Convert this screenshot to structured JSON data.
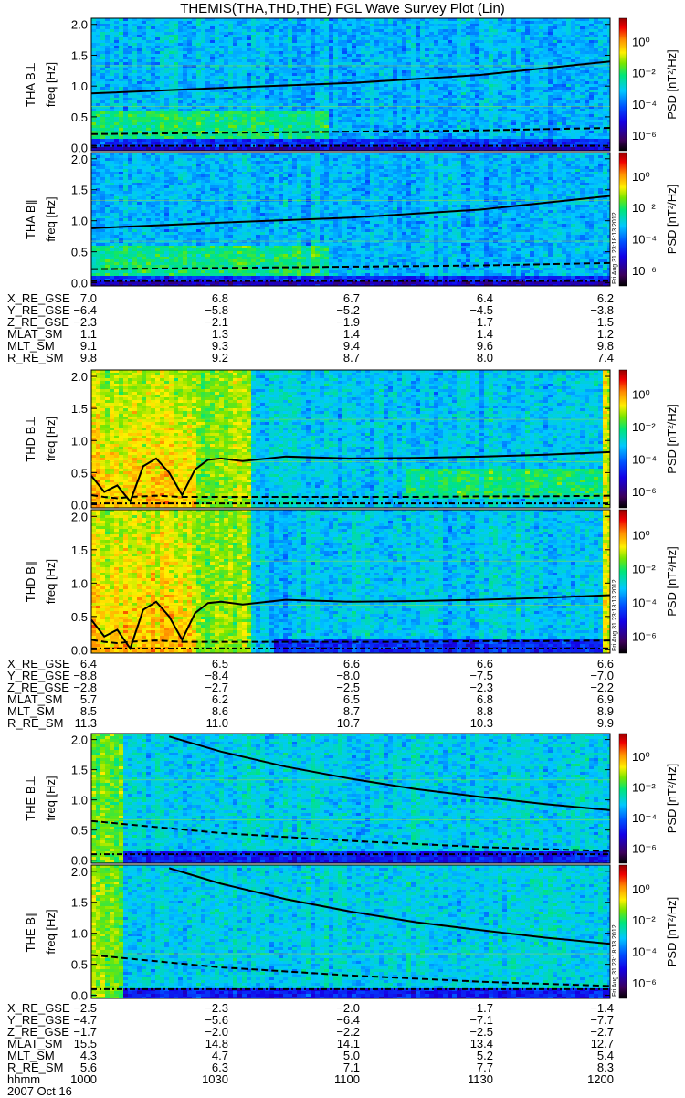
{
  "title": "THEMIS(THA,THD,THE) FGL Wave Survey Plot (Lin)",
  "colors": {
    "curve": "#000000",
    "background": "#ffffff"
  },
  "chart_data": {
    "type": "heatmap",
    "title": "THEMIS(THA,THD,THE) FGL Wave Survey Plot (Lin)",
    "xlabel": "hhmm",
    "date": "2007 Oct 16",
    "x_ticks": [
      "1000",
      "1030",
      "1100",
      "1130",
      "1200"
    ],
    "xlim_minutes_after_1000": [
      0,
      120
    ],
    "ylabel": "freq [Hz]",
    "ylim": [
      0,
      2.0
    ],
    "y_ticks": [
      "0.0",
      "0.5",
      "1.0",
      "1.5",
      "2.0"
    ],
    "colorbar": {
      "label": "PSD [nT²/Hz]",
      "scale": "log",
      "ticks": [
        "10⁰",
        "10⁻²",
        "10⁻⁴",
        "10⁻⁶"
      ],
      "range_log10": [
        -7,
        1.5
      ]
    },
    "timestamp": "Fri Aug 31 23:18:13 2012",
    "panels": [
      {
        "probe": "THA",
        "label": "THA B⊥",
        "curves": {
          "t": [
            0,
            30,
            60,
            90,
            120
          ],
          "solid": [
            0.88,
            0.97,
            1.05,
            1.18,
            1.4
          ],
          "dashed": [
            0.22,
            0.24,
            0.26,
            0.28,
            0.32
          ],
          "dashdot": [
            0.03,
            0.03,
            0.03,
            0.03,
            0.03
          ]
        }
      },
      {
        "probe": "THA",
        "label": "THA B∥",
        "curves": {
          "t": [
            0,
            30,
            60,
            90,
            120
          ],
          "solid": [
            0.88,
            0.97,
            1.05,
            1.18,
            1.4
          ],
          "dashed": [
            0.22,
            0.24,
            0.26,
            0.28,
            0.32
          ],
          "dashdot": [
            0.03,
            0.03,
            0.03,
            0.03,
            0.03
          ]
        }
      },
      {
        "probe": "THD",
        "label": "THD B⊥",
        "curves": {
          "t": [
            0,
            3,
            6,
            9,
            12,
            15,
            18,
            21,
            24,
            27,
            30,
            35,
            45,
            60,
            75,
            90,
            105,
            120
          ],
          "solid": [
            0.45,
            0.2,
            0.3,
            0.05,
            0.6,
            0.72,
            0.5,
            0.15,
            0.55,
            0.7,
            0.72,
            0.68,
            0.75,
            0.72,
            0.73,
            0.75,
            0.78,
            0.82
          ],
          "dashed": [
            0.15,
            0.12,
            0.1,
            0.12,
            0.13,
            0.14,
            0.13,
            0.12,
            0.12,
            0.12,
            0.12,
            0.12,
            0.12,
            0.12,
            0.12,
            0.13,
            0.13,
            0.14
          ],
          "dashdot": [
            0.02,
            0.02,
            0.02,
            0.02,
            0.02,
            0.02,
            0.02,
            0.02,
            0.02,
            0.02,
            0.02,
            0.02,
            0.02,
            0.02,
            0.02,
            0.02,
            0.02,
            0.02
          ]
        }
      },
      {
        "probe": "THD",
        "label": "THD B∥",
        "curves": {
          "t": [
            0,
            3,
            6,
            9,
            12,
            15,
            18,
            21,
            24,
            27,
            30,
            35,
            45,
            60,
            75,
            90,
            105,
            120
          ],
          "solid": [
            0.45,
            0.2,
            0.3,
            0.02,
            0.6,
            0.72,
            0.5,
            0.15,
            0.55,
            0.7,
            0.72,
            0.68,
            0.75,
            0.72,
            0.73,
            0.75,
            0.78,
            0.82
          ],
          "dashed": [
            0.15,
            0.12,
            0.1,
            0.12,
            0.13,
            0.14,
            0.13,
            0.12,
            0.12,
            0.12,
            0.12,
            0.12,
            0.12,
            0.12,
            0.12,
            0.13,
            0.13,
            0.14
          ],
          "dashdot": [
            0.02,
            0.02,
            0.02,
            0.02,
            0.02,
            0.02,
            0.02,
            0.02,
            0.02,
            0.02,
            0.02,
            0.02,
            0.02,
            0.02,
            0.02,
            0.02,
            0.02,
            0.02
          ]
        }
      },
      {
        "probe": "THE",
        "label": "THE B⊥",
        "curves": {
          "t": [
            18,
            30,
            45,
            60,
            75,
            90,
            105,
            120
          ],
          "solid": [
            2.05,
            1.8,
            1.55,
            1.35,
            1.18,
            1.05,
            0.93,
            0.83
          ],
          "dashed_t": [
            0,
            30,
            60,
            90,
            120
          ],
          "dashed": [
            0.65,
            0.45,
            0.32,
            0.22,
            0.15
          ],
          "dashdot": [
            0.1,
            0.1,
            0.1,
            0.1,
            0.1
          ]
        }
      },
      {
        "probe": "THE",
        "label": "THE B∥",
        "curves": {
          "t": [
            18,
            30,
            45,
            60,
            75,
            90,
            105,
            120
          ],
          "solid": [
            2.05,
            1.8,
            1.55,
            1.35,
            1.18,
            1.05,
            0.93,
            0.83
          ],
          "dashed_t": [
            0,
            30,
            60,
            90,
            120
          ],
          "dashed": [
            0.65,
            0.45,
            0.32,
            0.22,
            0.15
          ],
          "dashdot": [
            0.1,
            0.1,
            0.1,
            0.1,
            0.1
          ]
        }
      }
    ],
    "ephemeris": [
      {
        "probe": "THA",
        "rows": [
          {
            "label": "X_RE_GSE",
            "values": [
              "7.0",
              "6.8",
              "6.7",
              "6.4",
              "6.2"
            ]
          },
          {
            "label": "Y_RE_GSE",
            "values": [
              "−6.4",
              "−5.8",
              "−5.2",
              "−4.5",
              "−3.8"
            ]
          },
          {
            "label": "Z_RE_GSE",
            "values": [
              "−2.3",
              "−2.1",
              "−1.9",
              "−1.7",
              "−1.5"
            ]
          },
          {
            "label": "MLAT_SM",
            "values": [
              "1.1",
              "1.3",
              "1.4",
              "1.4",
              "1.2"
            ]
          },
          {
            "label": "MLT_SM",
            "values": [
              "9.1",
              "9.3",
              "9.4",
              "9.6",
              "9.8"
            ]
          },
          {
            "label": "R_RE_SM",
            "values": [
              "9.8",
              "9.2",
              "8.7",
              "8.0",
              "7.4"
            ]
          }
        ]
      },
      {
        "probe": "THD",
        "rows": [
          {
            "label": "X_RE_GSE",
            "values": [
              "6.4",
              "6.5",
              "6.6",
              "6.6",
              "6.6"
            ]
          },
          {
            "label": "Y_RE_GSE",
            "values": [
              "−8.8",
              "−8.4",
              "−8.0",
              "−7.5",
              "−7.0"
            ]
          },
          {
            "label": "Z_RE_GSE",
            "values": [
              "−2.8",
              "−2.7",
              "−2.5",
              "−2.3",
              "−2.2"
            ]
          },
          {
            "label": "MLAT_SM",
            "values": [
              "5.7",
              "6.2",
              "6.5",
              "6.8",
              "6.9"
            ]
          },
          {
            "label": "MLT_SM",
            "values": [
              "8.5",
              "8.6",
              "8.7",
              "8.8",
              "8.9"
            ]
          },
          {
            "label": "R_RE_SM",
            "values": [
              "11.3",
              "11.0",
              "10.7",
              "10.3",
              "9.9"
            ]
          }
        ]
      },
      {
        "probe": "THE",
        "rows": [
          {
            "label": "X_RE_GSE",
            "values": [
              "−2.5",
              "−2.3",
              "−2.0",
              "−1.7",
              "−1.4"
            ]
          },
          {
            "label": "Y_RE_GSE",
            "values": [
              "−4.7",
              "−5.6",
              "−6.4",
              "−7.1",
              "−7.7"
            ]
          },
          {
            "label": "Z_RE_GSE",
            "values": [
              "−1.7",
              "−2.0",
              "−2.2",
              "−2.5",
              "−2.7"
            ]
          },
          {
            "label": "MLAT_SM",
            "values": [
              "15.5",
              "14.8",
              "14.1",
              "13.4",
              "12.7"
            ]
          },
          {
            "label": "MLT_SM",
            "values": [
              "4.3",
              "4.7",
              "5.0",
              "5.2",
              "5.4"
            ]
          },
          {
            "label": "R_RE_SM",
            "values": [
              "5.6",
              "6.3",
              "7.1",
              "7.7",
              "8.3"
            ]
          },
          {
            "label": "hhmm",
            "values": [
              "1000",
              "1030",
              "1100",
              "1130",
              "1200"
            ]
          }
        ]
      }
    ]
  }
}
